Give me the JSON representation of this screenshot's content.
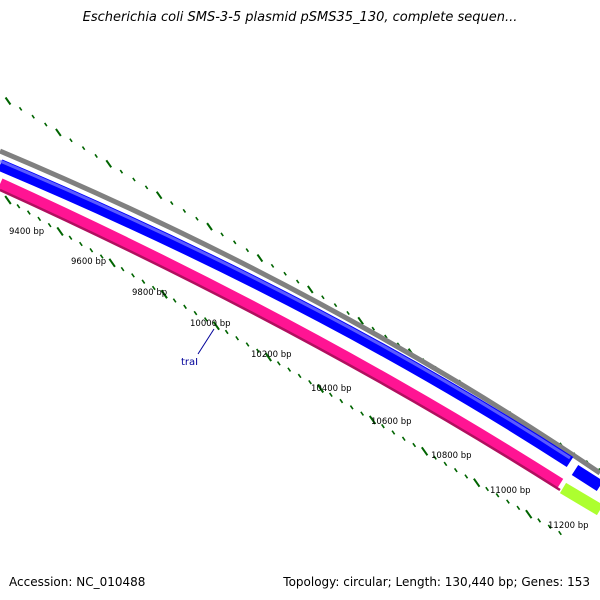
{
  "title": "Escherichia coli SMS-3-5 plasmid pSMS35_130, complete sequen...",
  "footer": {
    "accession": "Accession: NC_010488",
    "stats": "Topology: circular; Length: 130,440 bp; Genes: 153"
  },
  "ruler": {
    "labels": [
      "9400 bp",
      "9600 bp",
      "9800 bp",
      "10000 bp",
      "10200 bp",
      "10400 bp",
      "10600 bp",
      "10800 bp",
      "11000 bp",
      "11200 bp"
    ]
  },
  "features": [
    {
      "label": "traI",
      "color": "#000099"
    }
  ],
  "colors": {
    "backbone": "#808080",
    "forward_gene": "#0000ff",
    "reverse_gene": "#ff1493",
    "other_gene": "#adff2f",
    "ticks": "#006400"
  }
}
